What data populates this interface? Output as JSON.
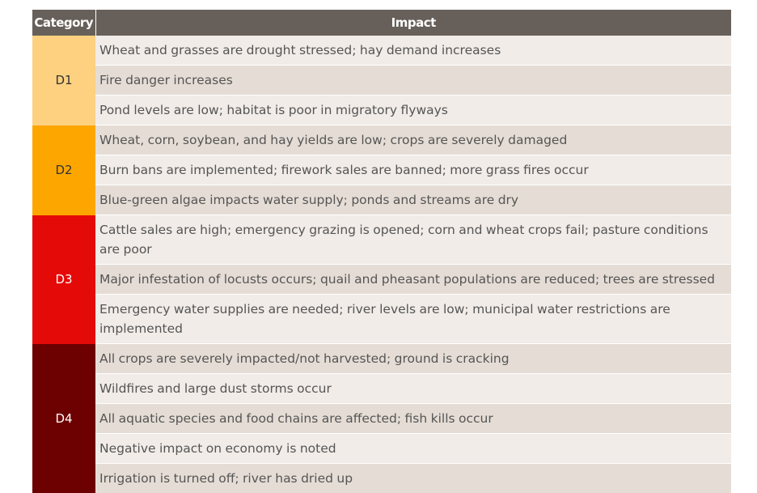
{
  "header": {
    "category": "Category",
    "impact": "Impact"
  },
  "groups": [
    {
      "label": "D1",
      "bg": "#fdd180",
      "fg": "#333333",
      "rows": [
        "Wheat and grasses are drought stressed; hay demand increases",
        "Fire danger increases",
        "Pond levels are low; habitat is poor in migratory flyways"
      ]
    },
    {
      "label": "D2",
      "bg": "#fda600",
      "fg": "#333333",
      "rows": [
        "Wheat, corn, soybean, and hay yields are low; crops are severely damaged",
        "Burn bans are implemented; firework sales are banned; more grass fires occur",
        "Blue-green algae impacts water supply; ponds and streams are dry"
      ]
    },
    {
      "label": "D3",
      "bg": "#e40a08",
      "fg": "#ffffff",
      "rows": [
        "Cattle sales are high; emergency grazing is opened; corn and wheat crops fail; pasture conditions are poor",
        "Major infestation of locusts occurs; quail and pheasant populations are reduced; trees are stressed",
        "Emergency water supplies are needed; river levels are low; municipal water restrictions are implemented"
      ]
    },
    {
      "label": "D4",
      "bg": "#6d0000",
      "fg": "#ffffff",
      "rows": [
        "All crops are severely impacted/not harvested; ground is cracking",
        "Wildfires and large dust storms occur",
        "All aquatic species and food chains are affected; fish kills occur",
        "Negative impact on economy is noted",
        "Irrigation is turned off; river has dried up"
      ]
    }
  ]
}
